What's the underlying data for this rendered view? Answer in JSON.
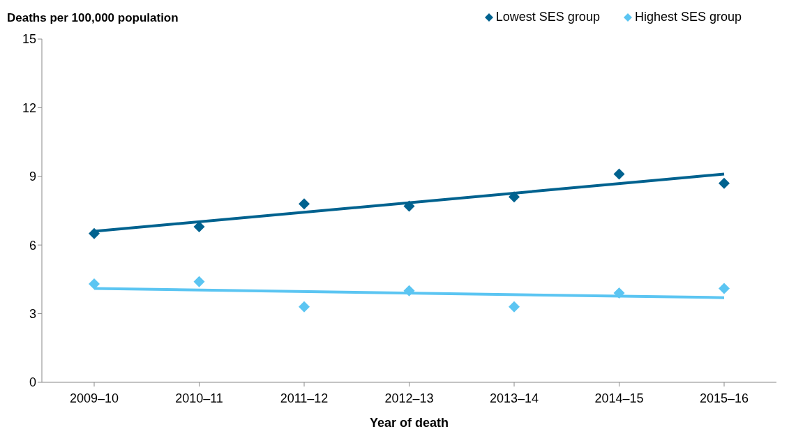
{
  "chart_data": {
    "type": "scatter",
    "ylabel": "Deaths per 100,000 population",
    "xlabel": "Year of death",
    "categories": [
      "2009–10",
      "2010–11",
      "2011–12",
      "2012–13",
      "2013–14",
      "2014–15",
      "2015–16"
    ],
    "ylim": [
      0,
      15
    ],
    "yticks": [
      0,
      3,
      6,
      9,
      12,
      15
    ],
    "grid": false,
    "legend": "top right",
    "marker": "diamond",
    "series": [
      {
        "name": "Lowest SES group",
        "color": "#00628f",
        "values": [
          6.5,
          6.8,
          7.8,
          7.7,
          8.1,
          9.1,
          8.7
        ]
      },
      {
        "name": "Highest SES group",
        "color": "#5bc5f2",
        "values": [
          4.3,
          4.4,
          3.3,
          4.0,
          3.3,
          3.9,
          4.1
        ]
      },
      {
        "type": "line",
        "marker": "none",
        "color": "#00628f",
        "x": [
          "2009–10",
          "2015–16"
        ],
        "values": [
          6.6,
          9.1
        ]
      },
      {
        "type": "line",
        "marker": "none",
        "color": "#5bc5f2",
        "x": [
          "2009–10",
          "2015–16"
        ],
        "values": [
          4.1,
          3.7
        ]
      }
    ]
  }
}
